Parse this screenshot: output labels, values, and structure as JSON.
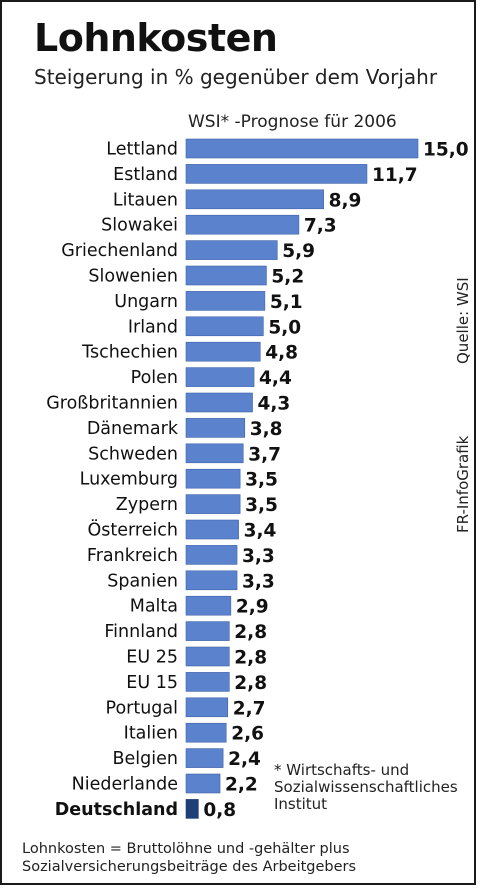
{
  "header": {
    "title": "Lohnkosten",
    "subtitle": "Steigerung in % gegenüber dem Vorjahr",
    "forecast_note": "WSI* -Prognose für 2006"
  },
  "side": {
    "source": "Quelle: WSI",
    "infografik": "FR-InfoGrafik"
  },
  "footnote": {
    "line1": "* Wirtschafts- und",
    "line2": "Sozialwissenschaftliches",
    "line3": "Institut"
  },
  "bottom_note": {
    "line1": "Lohnkosten = Bruttolöhne und -gehälter plus",
    "line2": "Sozialversicherungsbeiträge des Arbeitgebers"
  },
  "colors": {
    "bar": "#5b82cd",
    "highlight_bar": "#1f3f78",
    "bar_border": "#3e63a9"
  },
  "chart_data": {
    "type": "bar",
    "orientation": "horizontal",
    "value_format": "comma-decimal",
    "highlight_category": "Deutschland",
    "categories": [
      "Lettland",
      "Estland",
      "Litauen",
      "Slowakei",
      "Griechenland",
      "Slowenien",
      "Ungarn",
      "Irland",
      "Tschechien",
      "Polen",
      "Großbritannien",
      "Dänemark",
      "Schweden",
      "Luxemburg",
      "Zypern",
      "Österreich",
      "Frankreich",
      "Spanien",
      "Malta",
      "Finnland",
      "EU 25",
      "EU 15",
      "Portugal",
      "Italien",
      "Belgien",
      "Niederlande",
      "Deutschland"
    ],
    "values": [
      15.0,
      11.7,
      8.9,
      7.3,
      5.9,
      5.2,
      5.1,
      5.0,
      4.8,
      4.4,
      4.3,
      3.8,
      3.7,
      3.5,
      3.5,
      3.4,
      3.3,
      3.3,
      2.9,
      2.8,
      2.8,
      2.8,
      2.7,
      2.6,
      2.4,
      2.2,
      0.8
    ],
    "xlim": [
      0,
      15
    ]
  }
}
